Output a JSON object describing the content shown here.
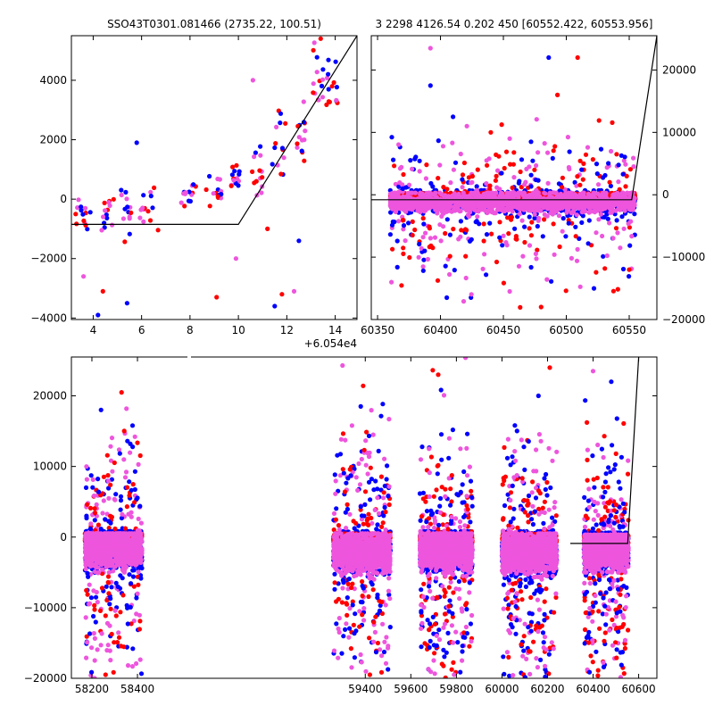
{
  "figure": {
    "title_left": "SSO43T0301.081466 (2735.22, 100.51)",
    "title_right": "3 2298 4126.54 0.202 450 [60552.422, 60553.956]"
  },
  "colors": {
    "blue": "#0000ff",
    "red": "#ff0000",
    "pink": "#ee55dd",
    "line": "#000000"
  },
  "chart_data": [
    {
      "id": "zoom",
      "type": "scatter",
      "title": "",
      "xlabel": "",
      "ylabel": "",
      "x_offset_label": "+6.054e4",
      "xlim": [
        3.1,
        14.9
      ],
      "ylim": [
        -4050,
        5500
      ],
      "x_ticks": [
        4,
        6,
        8,
        10,
        12,
        14
      ],
      "x_tick_labels": [
        "4",
        "6",
        "8",
        "10",
        "12",
        "14"
      ],
      "y_ticks": [
        -4000,
        -2000,
        0,
        2000,
        4000
      ],
      "y_tick_labels": [
        "−4000",
        "−2000",
        "0",
        "2000",
        "4000"
      ],
      "model_line": [
        [
          3.1,
          -850
        ],
        [
          10,
          -850
        ],
        [
          14.9,
          5500
        ]
      ],
      "clusters": [
        {
          "x": [
            3.2,
            3.9
          ],
          "y": -450,
          "sd": 350
        },
        {
          "x": [
            4.3,
            4.9
          ],
          "y": -400,
          "sd": 400
        },
        {
          "x": [
            5.1,
            5.7
          ],
          "y": -350,
          "sd": 450
        },
        {
          "x": [
            5.9,
            6.7
          ],
          "y": -250,
          "sd": 350
        },
        {
          "x": [
            7.6,
            8.3
          ],
          "y": 200,
          "sd": 300
        },
        {
          "x": [
            8.6,
            9.3
          ],
          "y": 300,
          "sd": 300
        },
        {
          "x": [
            9.7,
            10.2
          ],
          "y": 600,
          "sd": 250
        },
        {
          "x": [
            10.5,
            11.0
          ],
          "y": 1100,
          "sd": 400
        },
        {
          "x": [
            11.4,
            12.0
          ],
          "y": 1700,
          "sd": 500
        },
        {
          "x": [
            12.4,
            12.8
          ],
          "y": 2200,
          "sd": 500
        },
        {
          "x": [
            13.0,
            13.5
          ],
          "y": 4200,
          "sd": 700
        },
        {
          "x": [
            13.6,
            14.1
          ],
          "y": 3700,
          "sd": 500
        }
      ],
      "outliers": [
        {
          "x": 4.2,
          "y": -3900
        },
        {
          "x": 4.4,
          "y": -3100
        },
        {
          "x": 3.6,
          "y": -2600
        },
        {
          "x": 5.4,
          "y": -3500
        },
        {
          "x": 9.1,
          "y": -3300
        },
        {
          "x": 9.9,
          "y": -2000
        },
        {
          "x": 11.5,
          "y": -3600
        },
        {
          "x": 11.8,
          "y": -3200
        },
        {
          "x": 12.3,
          "y": -3100
        },
        {
          "x": 12.5,
          "y": -1400
        },
        {
          "x": 11.2,
          "y": -1000
        },
        {
          "x": 10.6,
          "y": 4000
        },
        {
          "x": 5.8,
          "y": 1900
        },
        {
          "x": 13.4,
          "y": 5400
        }
      ]
    },
    {
      "id": "recent",
      "type": "scatter",
      "title": "",
      "xlabel": "",
      "ylabel": "",
      "xlim": [
        60345,
        60572
      ],
      "ylim": [
        -20000,
        25500
      ],
      "x_ticks": [
        60350,
        60400,
        60450,
        60500,
        60550
      ],
      "x_tick_labels": [
        "60350",
        "60400",
        "60450",
        "60500",
        "60550"
      ],
      "y_ticks": [
        -20000,
        -10000,
        0,
        10000,
        20000
      ],
      "y_tick_labels": [
        "−20000",
        "−10000",
        "0",
        "10000",
        "20000"
      ],
      "model_line": [
        [
          60345,
          -800
        ],
        [
          60552,
          -800
        ],
        [
          60572,
          25500
        ]
      ],
      "band": {
        "x": [
          60360,
          60555
        ],
        "center": -1200,
        "top": 300,
        "bottom": -3500
      },
      "outliers": [
        {
          "x": 60486,
          "y": 22000
        },
        {
          "x": 60509,
          "y": 22000
        },
        {
          "x": 60392,
          "y": 23500
        },
        {
          "x": 60392,
          "y": 17500
        },
        {
          "x": 60493,
          "y": 16000
        },
        {
          "x": 60421,
          "y": 11000
        },
        {
          "x": 60410,
          "y": 12500
        },
        {
          "x": 60440,
          "y": 10000
        },
        {
          "x": 60455,
          "y": 9000
        },
        {
          "x": 60472,
          "y": 8500
        },
        {
          "x": 60540,
          "y": 6500
        },
        {
          "x": 60361,
          "y": -14000
        },
        {
          "x": 60405,
          "y": -16500
        },
        {
          "x": 60480,
          "y": -18000
        },
        {
          "x": 60455,
          "y": -15500
        },
        {
          "x": 60522,
          "y": -15000
        },
        {
          "x": 60550,
          "y": -12000
        }
      ]
    },
    {
      "id": "full",
      "type": "scatter",
      "title": "",
      "xlabel": "",
      "ylabel": "",
      "xlim": [
        58110,
        60680
      ],
      "ylim": [
        -20000,
        25500
      ],
      "x_ticks": [
        58200,
        58400,
        59400,
        59600,
        59800,
        60000,
        60200,
        60400,
        60600
      ],
      "x_tick_labels": [
        "58200",
        "58400",
        "59400",
        "59600",
        "59800",
        "60000",
        "60200",
        "60400",
        "60600"
      ],
      "y_ticks": [
        -20000,
        -10000,
        0,
        10000,
        20000
      ],
      "y_tick_labels": [
        "−20000",
        "−10000",
        "0",
        "10000",
        "20000"
      ],
      "model_line": [
        [
          60300,
          -900
        ],
        [
          60552,
          -900
        ],
        [
          60600,
          25500
        ]
      ],
      "seasons": [
        {
          "x": [
            58170,
            58420
          ],
          "center": -1500,
          "top": 500,
          "bottom": -5000,
          "spread": 9000
        },
        {
          "x": [
            59260,
            59510
          ],
          "center": -2200,
          "top": 500,
          "bottom": -6000,
          "spread": 11000
        },
        {
          "x": [
            59640,
            59870
          ],
          "center": -2000,
          "top": 500,
          "bottom": -5500,
          "spread": 10000
        },
        {
          "x": [
            60000,
            60240
          ],
          "center": -2200,
          "top": 500,
          "bottom": -6000,
          "spread": 10000
        },
        {
          "x": [
            60360,
            60555
          ],
          "center": -1800,
          "top": 300,
          "bottom": -5000,
          "spread": 9000
        }
      ],
      "outliers": [
        {
          "x": 58240,
          "y": 18000
        },
        {
          "x": 58330,
          "y": 20500
        },
        {
          "x": 59300,
          "y": 24300
        },
        {
          "x": 59380,
          "y": 18500
        },
        {
          "x": 59720,
          "y": 23000
        },
        {
          "x": 59840,
          "y": 25400
        },
        {
          "x": 60160,
          "y": 20000
        },
        {
          "x": 60210,
          "y": 24000
        },
        {
          "x": 60400,
          "y": 23500
        },
        {
          "x": 60480,
          "y": 22000
        },
        {
          "x": 59420,
          "y": -19500
        },
        {
          "x": 59790,
          "y": -19500
        },
        {
          "x": 60190,
          "y": -19800
        },
        {
          "x": 58260,
          "y": -19500
        }
      ]
    }
  ]
}
